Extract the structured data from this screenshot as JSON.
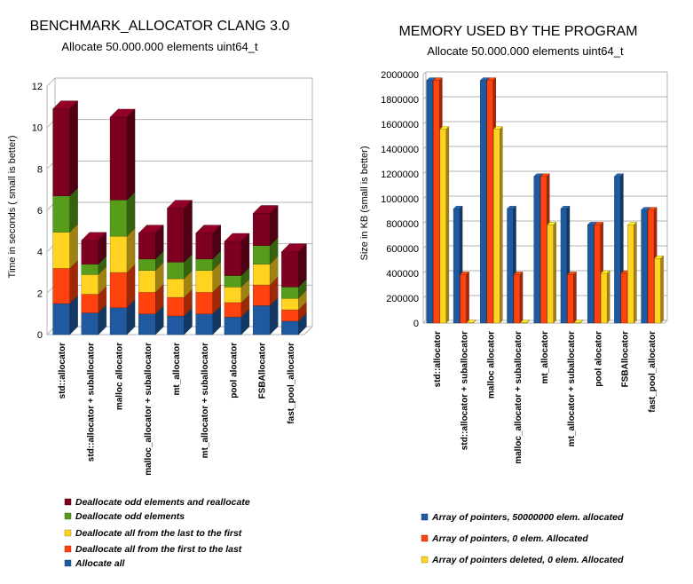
{
  "chart_data": [
    {
      "type": "bar",
      "stacked": true,
      "title": "BENCHMARK_ALLOCATOR CLANG 3.0",
      "subtitle": "Allocate 50.000.000 elements uint64_t",
      "ylabel": "Time in seconds ( small is better)",
      "xlabel": "",
      "ylim": [
        0,
        12
      ],
      "yticks": [
        0,
        2,
        4,
        6,
        8,
        10,
        12
      ],
      "grid": true,
      "legend_position": "bottom-left",
      "categories": [
        "std::allocator",
        "std::allocator + suballocator",
        "malloc allocator",
        "malloc_allocator + suballocator",
        "mt_allocator",
        "mt_allocator + suballocator",
        "pool alocator",
        "FSBAllocator",
        "fast_pool_allocator"
      ],
      "series": [
        {
          "name": "Allocate all",
          "color": "#1f5aa0",
          "values": [
            1.5,
            1.05,
            1.3,
            1.0,
            0.9,
            1.0,
            0.85,
            1.4,
            0.65
          ]
        },
        {
          "name": "Deallocate all from the first to the last",
          "color": "#ff420e",
          "values": [
            1.7,
            0.9,
            1.7,
            1.05,
            0.9,
            1.05,
            0.7,
            1.0,
            0.55
          ]
        },
        {
          "name": "Deallocate all from the last to the first",
          "color": "#ffd320",
          "values": [
            1.75,
            0.95,
            1.75,
            1.05,
            0.9,
            1.05,
            0.75,
            1.0,
            0.55
          ]
        },
        {
          "name": "Deallocate odd elements",
          "color": "#579d1c",
          "values": [
            1.75,
            0.5,
            1.75,
            0.55,
            0.8,
            0.55,
            0.55,
            0.9,
            0.55
          ]
        },
        {
          "name": "Deallocate odd elements and reallocate",
          "color": "#7e0021",
          "values": [
            4.2,
            1.15,
            4.0,
            1.25,
            2.6,
            1.25,
            1.65,
            1.55,
            1.7
          ]
        }
      ]
    },
    {
      "type": "bar",
      "title": "MEMORY USED BY THE PROGRAM",
      "subtitle": "Allocate 50.000.000 elements uint64_t",
      "ylabel": "Size in KB (small is better)",
      "xlabel": "",
      "ylim": [
        0,
        2000000
      ],
      "yticks": [
        0,
        200000,
        400000,
        600000,
        800000,
        1000000,
        1200000,
        1400000,
        1600000,
        1800000,
        2000000
      ],
      "grid": true,
      "legend_position": "bottom",
      "categories": [
        "std::allocator",
        "std::allocator + suballocator",
        "malloc allocator",
        "malloc_allocator + suballocator",
        "mt_allocator",
        "mt_allocator + suballocator",
        "pool alocator",
        "FSBAllocator",
        "fast_pool_allocator"
      ],
      "series": [
        {
          "name": "Array of pointers, 50000000 elem. allocated",
          "color": "#1f5aa0",
          "values": [
            1953000,
            920000,
            1953000,
            920000,
            1180000,
            920000,
            790000,
            1180000,
            910000
          ]
        },
        {
          "name": "Array of pointers, 0 elem. Allocated",
          "color": "#ff420e",
          "values": [
            1953000,
            390000,
            1953000,
            390000,
            1180000,
            390000,
            790000,
            400000,
            910000
          ]
        },
        {
          "name": "Array of pointers deleted, 0 elem. Allocated",
          "color": "#ffd320",
          "values": [
            1560000,
            4000,
            1560000,
            4000,
            790000,
            4000,
            400000,
            790000,
            520000
          ]
        }
      ]
    }
  ]
}
